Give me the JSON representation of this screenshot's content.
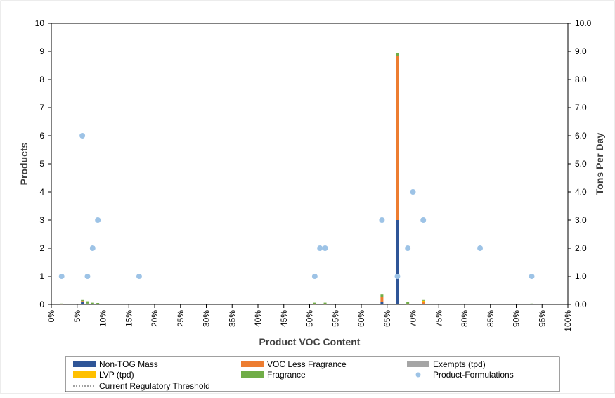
{
  "chart_data": {
    "type": "bar",
    "xlabel": "Product VOC Content",
    "ylabel_left": "Products",
    "ylabel_right": "Tons Per Day",
    "x_range": [
      0,
      100
    ],
    "x_ticks": [
      "0%",
      "5%",
      "10%",
      "15%",
      "20%",
      "25%",
      "30%",
      "35%",
      "40%",
      "45%",
      "50%",
      "55%",
      "60%",
      "65%",
      "70%",
      "75%",
      "80%",
      "85%",
      "90%",
      "95%",
      "100%"
    ],
    "ylim_left": [
      0,
      10
    ],
    "ylim_right": [
      0,
      10
    ],
    "y_ticks_left": [
      "0",
      "1",
      "2",
      "3",
      "4",
      "5",
      "6",
      "7",
      "8",
      "9",
      "10"
    ],
    "y_ticks_right": [
      "0.0",
      "1.0",
      "2.0",
      "3.0",
      "4.0",
      "5.0",
      "6.0",
      "7.0",
      "8.0",
      "9.0",
      "10.0"
    ],
    "grid": false,
    "legend_placement": "bottom",
    "threshold": {
      "x": 70,
      "name": "Current Regulatory Threshold"
    },
    "bar_x": [
      2,
      6,
      7,
      8,
      9,
      17,
      51,
      52,
      53,
      64,
      67,
      69,
      72,
      83,
      93
    ],
    "bar_series": [
      {
        "name": "Non-TOG Mass",
        "color": "#2f5597",
        "values": [
          0,
          0.1,
          0.03,
          0,
          0,
          0,
          0,
          0,
          0,
          0.1,
          3.0,
          0,
          0,
          0,
          0
        ]
      },
      {
        "name": "VOC Less Fragrance",
        "color": "#ed7d31",
        "values": [
          0.01,
          0.02,
          0,
          0,
          0,
          0.02,
          0.01,
          0.02,
          0.01,
          0.17,
          5.85,
          0.01,
          0.08,
          0.02,
          0
        ]
      },
      {
        "name": "Exempts (tpd)",
        "color": "#a5a5a5",
        "values": [
          0,
          0,
          0,
          0,
          0,
          0,
          0,
          0,
          0,
          0,
          0,
          0,
          0,
          0,
          0
        ]
      },
      {
        "name": "LVP (tpd)",
        "color": "#ffc000",
        "values": [
          0,
          0,
          0,
          0,
          0,
          0,
          0,
          0,
          0,
          0,
          0,
          0,
          0.05,
          0,
          0
        ]
      },
      {
        "name": "Fragrance",
        "color": "#70ad47",
        "values": [
          0.02,
          0.06,
          0.08,
          0.06,
          0.05,
          0,
          0.05,
          0,
          0.05,
          0.1,
          0.1,
          0.08,
          0.05,
          0,
          0.03
        ]
      }
    ],
    "scatter": {
      "name": "Product-Formulations",
      "color": "#9dc3e6",
      "x": [
        2,
        6,
        7,
        8,
        9,
        17,
        51,
        52,
        53,
        64,
        67,
        69,
        70,
        72,
        83,
        93
      ],
      "y": [
        1,
        6,
        1,
        2,
        3,
        1,
        1,
        2,
        2,
        3,
        1,
        2,
        4,
        3,
        2,
        1
      ]
    },
    "legend": [
      {
        "label": "Non-TOG Mass",
        "kind": "box",
        "color": "#2f5597"
      },
      {
        "label": "VOC Less Fragrance",
        "kind": "box",
        "color": "#ed7d31"
      },
      {
        "label": "Exempts (tpd)",
        "kind": "box",
        "color": "#a5a5a5"
      },
      {
        "label": "LVP (tpd)",
        "kind": "box",
        "color": "#ffc000"
      },
      {
        "label": "Fragrance",
        "kind": "box",
        "color": "#70ad47"
      },
      {
        "label": "Product-Formulations",
        "kind": "dot",
        "color": "#9dc3e6"
      },
      {
        "label": "Current Regulatory Threshold",
        "kind": "dash",
        "color": "#444444"
      }
    ]
  }
}
